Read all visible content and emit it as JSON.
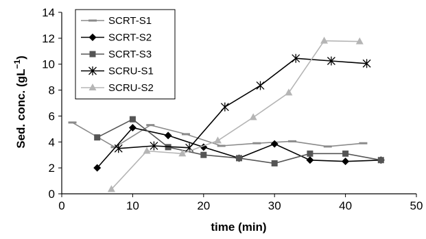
{
  "chart_data": {
    "type": "line",
    "title": "",
    "xlabel": "time (min)",
    "ylabel": "Sed. conc. (gL",
    "ylabel_sup": "−1",
    "ylabel_close": ")",
    "xlim": [
      0,
      50
    ],
    "ylim": [
      0,
      14
    ],
    "xticks": [
      "0",
      "10",
      "20",
      "30",
      "40",
      "50"
    ],
    "yticks": [
      "0",
      "2",
      "4",
      "6",
      "8",
      "10",
      "12",
      "14"
    ],
    "grid": false,
    "legend_position": "top-left",
    "series": [
      {
        "name": "SCRT-S1",
        "color": "#8a8a8a",
        "marker": "dash",
        "points": [
          [
            1.5,
            5.5
          ],
          [
            7.5,
            3.6
          ],
          [
            12.5,
            5.3
          ],
          [
            17.5,
            4.6
          ],
          [
            22.5,
            3.7
          ],
          [
            27.5,
            3.9
          ],
          [
            32.5,
            4.05
          ],
          [
            37.5,
            3.65
          ],
          [
            42.5,
            3.9
          ]
        ]
      },
      {
        "name": "SCRT-S2",
        "color": "#000000",
        "marker": "diamond",
        "points": [
          [
            5,
            2.0
          ],
          [
            10,
            5.1
          ],
          [
            15,
            4.5
          ],
          [
            20,
            3.6
          ],
          [
            25,
            2.75
          ],
          [
            30,
            3.85
          ],
          [
            35,
            2.6
          ],
          [
            40,
            2.5
          ],
          [
            45,
            2.6
          ]
        ]
      },
      {
        "name": "SCRT-S3",
        "color": "#555555",
        "marker": "square",
        "points": [
          [
            5,
            4.35
          ],
          [
            10,
            5.75
          ],
          [
            15,
            3.6
          ],
          [
            20,
            3.0
          ],
          [
            25,
            2.75
          ],
          [
            30,
            2.35
          ],
          [
            35,
            3.1
          ],
          [
            40,
            3.1
          ],
          [
            45,
            2.6
          ]
        ]
      },
      {
        "name": "SCRU-S1",
        "color": "#000000",
        "marker": "asterisk",
        "points": [
          [
            8,
            3.5
          ],
          [
            13,
            3.7
          ],
          [
            18,
            3.55
          ],
          [
            23,
            6.7
          ],
          [
            28,
            8.35
          ],
          [
            33,
            10.45
          ],
          [
            38,
            10.25
          ],
          [
            43,
            10.05
          ]
        ]
      },
      {
        "name": "SCRU-S2",
        "color": "#b5b5b5",
        "marker": "triangle",
        "points": [
          [
            7,
            0.35
          ],
          [
            12,
            3.3
          ],
          [
            17,
            3.1
          ],
          [
            22,
            4.1
          ],
          [
            27,
            5.9
          ],
          [
            32,
            7.8
          ],
          [
            37,
            11.8
          ],
          [
            42,
            11.75
          ]
        ]
      }
    ]
  }
}
